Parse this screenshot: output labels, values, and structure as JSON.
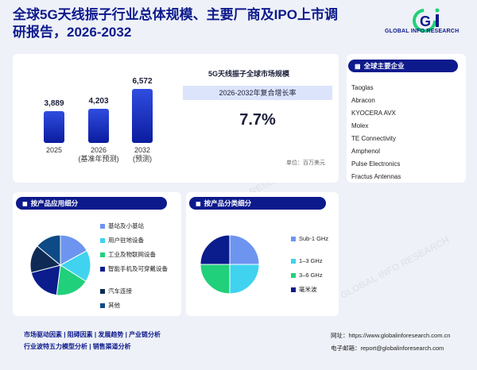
{
  "title": "全球5G天线振子行业总体规模、主要厂商及IPO上市调研报告，2026-2032",
  "logo": {
    "brand": "GLOBAL INFO RESEARCH",
    "mark": "Gi"
  },
  "watermark": "GLOBAL INFO RESEARCH",
  "market": {
    "section_title": "5G天线振子全球市场规模",
    "cagr_label": "2026-2032年复合增长率",
    "cagr_value": "7.7%",
    "unit": "单位：百万美元"
  },
  "chart_data": {
    "type": "bar",
    "categories": [
      "2025",
      "2026\n(基准年预测)",
      "2032\n(预测)"
    ],
    "values": [
      3889,
      4203,
      6572
    ],
    "value_labels": [
      "3,889",
      "4,203",
      "6,572"
    ],
    "cat_lines": [
      [
        "2025"
      ],
      [
        "2026",
        "(基准年预测)"
      ],
      [
        "2032",
        "(预测)"
      ]
    ]
  },
  "companies": {
    "title": "全球主要企业",
    "items": [
      "Taoglas",
      "Abracon",
      "KYOCERA AVX",
      "Molex",
      "TE Connectivity",
      "Amphenol",
      "Pulse Electronics",
      "Fractus Antennas"
    ]
  },
  "application": {
    "title": "按产品应用细分",
    "legend": [
      "基站及小基站",
      "用户驻地设备",
      "工业及物联网设备",
      "智能手机及可穿戴设备",
      "汽车连接",
      "其他"
    ],
    "colors": [
      "#6d95f0",
      "#3fd3ef",
      "#21d07a",
      "#0b1c8c",
      "#0f2b55",
      "#0d4a86"
    ],
    "shares": [
      17,
      17,
      18,
      19,
      15,
      14
    ]
  },
  "product": {
    "title": "按产品分类细分",
    "legend": [
      "Sub-1 GHz",
      "1–3 GHz",
      "3–6 GHz",
      "毫米波"
    ],
    "colors": [
      "#6d95f0",
      "#3fd3ef",
      "#21d07a",
      "#0b1c8c"
    ],
    "shares": [
      25,
      25,
      25,
      25
    ]
  },
  "footer": {
    "links_row1": [
      "市场驱动因素",
      "阻碍因素",
      "发展趋势",
      "产业链分析"
    ],
    "links_row2": [
      "行业波特五力模型分析",
      "销售渠道分析"
    ],
    "website_label": "网址：",
    "website": "https://www.globalinforesearch.com.cn",
    "email_label": "电子邮箱：",
    "email": "report@globalinforesearch.com"
  }
}
